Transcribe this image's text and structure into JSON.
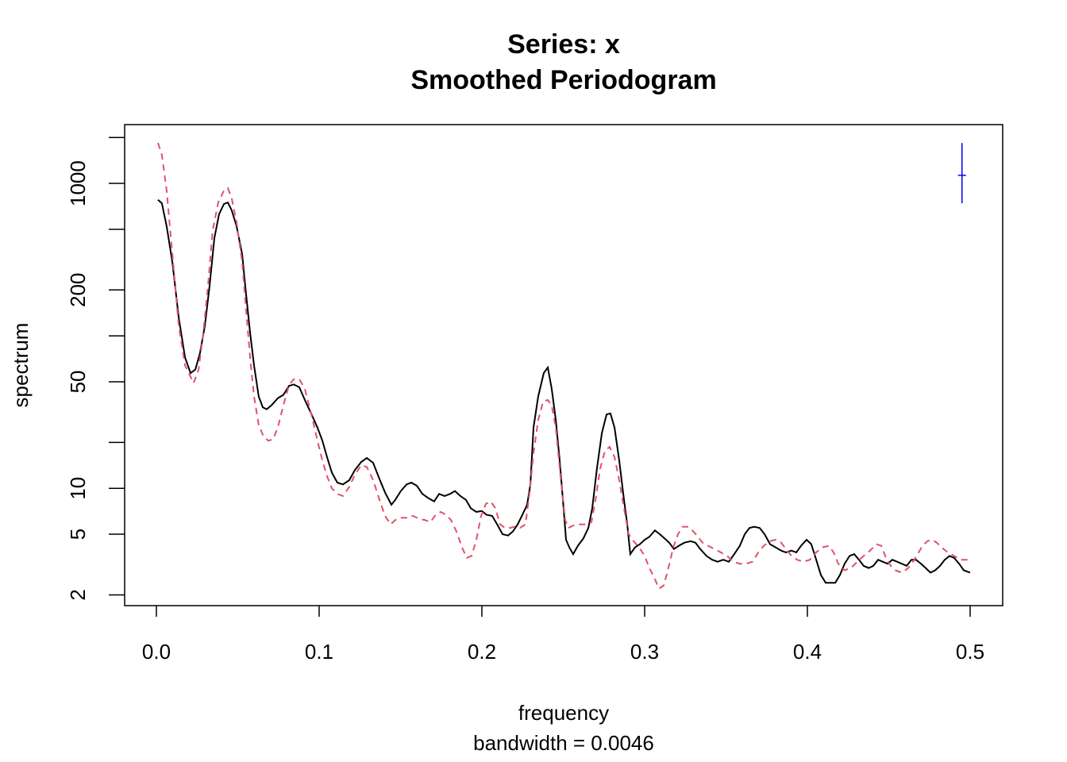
{
  "chart_data": {
    "type": "line",
    "title": "Series: x",
    "subtitle": "Smoothed Periodogram",
    "xlabel": "frequency",
    "sub": "bandwidth = 0.0046",
    "ylabel": "spectrum",
    "log_y": true,
    "xlim": [
      -0.0195,
      0.52
    ],
    "ylim": [
      1.7,
      2430
    ],
    "xticks": [
      {
        "value": 0,
        "label": "0.0"
      },
      0.1,
      0.2,
      0.3,
      0.4,
      0.5
    ],
    "yticks": [
      2,
      5,
      10,
      50,
      200,
      1000
    ],
    "yminor_ticks": [
      20,
      100,
      500,
      2000
    ],
    "series": [
      {
        "color": "#000000",
        "dash": false,
        "x": [
          0.001,
          0.0034,
          0.0063,
          0.0098,
          0.0137,
          0.0176,
          0.021,
          0.0239,
          0.0268,
          0.0298,
          0.0327,
          0.0356,
          0.0385,
          0.0415,
          0.0439,
          0.0463,
          0.0493,
          0.0527,
          0.0551,
          0.0576,
          0.06,
          0.0629,
          0.0654,
          0.0678,
          0.0707,
          0.0746,
          0.078,
          0.0815,
          0.0844,
          0.0878,
          0.0917,
          0.0951,
          0.099,
          0.102,
          0.1049,
          0.1078,
          0.1112,
          0.1146,
          0.1185,
          0.122,
          0.1259,
          0.1293,
          0.1332,
          0.1371,
          0.1405,
          0.1444,
          0.1468,
          0.1502,
          0.1537,
          0.1566,
          0.16,
          0.1634,
          0.1673,
          0.1707,
          0.1737,
          0.1771,
          0.1805,
          0.1834,
          0.1868,
          0.1902,
          0.1932,
          0.1966,
          0.2,
          0.2029,
          0.2063,
          0.2098,
          0.2127,
          0.2161,
          0.219,
          0.222,
          0.2249,
          0.2278,
          0.2298,
          0.2317,
          0.2346,
          0.238,
          0.2405,
          0.2429,
          0.2454,
          0.2478,
          0.2502,
          0.2517,
          0.2537,
          0.2561,
          0.259,
          0.2624,
          0.2654,
          0.2678,
          0.2707,
          0.2737,
          0.2766,
          0.279,
          0.2815,
          0.2844,
          0.2873,
          0.2893,
          0.2912,
          0.2941,
          0.2971,
          0.3,
          0.3029,
          0.3063,
          0.3093,
          0.3122,
          0.3151,
          0.318,
          0.321,
          0.3244,
          0.3283,
          0.3312,
          0.3341,
          0.338,
          0.3415,
          0.3449,
          0.3483,
          0.3517,
          0.3551,
          0.3585,
          0.3615,
          0.3644,
          0.3673,
          0.3707,
          0.3737,
          0.3771,
          0.3805,
          0.3839,
          0.3868,
          0.3902,
          0.3932,
          0.3961,
          0.3995,
          0.4024,
          0.4054,
          0.4083,
          0.4112,
          0.4141,
          0.4171,
          0.42,
          0.4229,
          0.4259,
          0.4288,
          0.4317,
          0.4346,
          0.4376,
          0.4405,
          0.4434,
          0.4463,
          0.4493,
          0.4522,
          0.4551,
          0.458,
          0.461,
          0.4639,
          0.4668,
          0.4698,
          0.4727,
          0.4756,
          0.4785,
          0.4815,
          0.4844,
          0.4873,
          0.4902,
          0.4932,
          0.4961,
          0.5
        ],
        "values": [
          780,
          741,
          524,
          305,
          132,
          72,
          57,
          60,
          77,
          117,
          213,
          437,
          627,
          733,
          750,
          665,
          524,
          344,
          189,
          104,
          64,
          40,
          34,
          33,
          35,
          39,
          41,
          47,
          48,
          46,
          37,
          31,
          25,
          20.5,
          16,
          12.7,
          10.9,
          10.6,
          11.3,
          13.2,
          14.9,
          15.8,
          14.7,
          11.5,
          9.4,
          7.8,
          8.4,
          9.6,
          10.6,
          10.9,
          10.4,
          9.2,
          8.6,
          8.2,
          9.2,
          8.9,
          9.2,
          9.6,
          8.9,
          8.4,
          7.4,
          7.0,
          7.1,
          6.7,
          6.6,
          5.7,
          5.0,
          4.9,
          5.2,
          5.8,
          6.7,
          7.8,
          10.6,
          25,
          40,
          57,
          62,
          45,
          28,
          15.2,
          7.4,
          4.6,
          4.1,
          3.7,
          4.2,
          4.7,
          5.5,
          7.4,
          13.5,
          23,
          30.5,
          31,
          25,
          15.2,
          8.4,
          5.8,
          3.7,
          4.1,
          4.3,
          4.6,
          4.8,
          5.3,
          5.0,
          4.7,
          4.4,
          4.0,
          4.2,
          4.4,
          4.5,
          4.4,
          4.0,
          3.6,
          3.4,
          3.3,
          3.4,
          3.3,
          3.7,
          4.2,
          5.0,
          5.5,
          5.6,
          5.5,
          5.0,
          4.3,
          4.1,
          3.9,
          3.8,
          3.9,
          3.8,
          4.2,
          4.6,
          4.3,
          3.4,
          2.7,
          2.4,
          2.4,
          2.4,
          2.7,
          3.2,
          3.6,
          3.7,
          3.4,
          3.1,
          3.0,
          3.1,
          3.4,
          3.3,
          3.2,
          3.4,
          3.3,
          3.2,
          3.1,
          3.4,
          3.4,
          3.2,
          3.0,
          2.8,
          2.9,
          3.1,
          3.4,
          3.6,
          3.5,
          3.2,
          2.9,
          2.8
        ]
      },
      {
        "color": "#DF536B",
        "dash": true,
        "x": [
          0.001,
          0.0034,
          0.0063,
          0.0098,
          0.0137,
          0.0176,
          0.021,
          0.0229,
          0.0259,
          0.0288,
          0.0317,
          0.0346,
          0.038,
          0.0415,
          0.0439,
          0.0463,
          0.0493,
          0.0527,
          0.0551,
          0.0576,
          0.06,
          0.0629,
          0.0659,
          0.0688,
          0.0717,
          0.0746,
          0.078,
          0.0815,
          0.0844,
          0.0878,
          0.0912,
          0.0951,
          0.099,
          0.102,
          0.1049,
          0.1078,
          0.1112,
          0.1146,
          0.1185,
          0.122,
          0.1259,
          0.1293,
          0.1332,
          0.1371,
          0.1405,
          0.1439,
          0.1468,
          0.1502,
          0.1537,
          0.1576,
          0.1615,
          0.1649,
          0.1683,
          0.1712,
          0.1746,
          0.178,
          0.181,
          0.1844,
          0.1878,
          0.1907,
          0.1937,
          0.1966,
          0.1995,
          0.2024,
          0.2054,
          0.2083,
          0.2112,
          0.2141,
          0.2171,
          0.22,
          0.2234,
          0.2268,
          0.2293,
          0.2317,
          0.2346,
          0.2376,
          0.2405,
          0.2429,
          0.2454,
          0.2483,
          0.2512,
          0.2532,
          0.2561,
          0.26,
          0.2639,
          0.2673,
          0.2698,
          0.2727,
          0.2756,
          0.2785,
          0.2815,
          0.2844,
          0.2873,
          0.2902,
          0.2932,
          0.2966,
          0.3,
          0.3029,
          0.3059,
          0.3088,
          0.3117,
          0.3146,
          0.3176,
          0.3205,
          0.3234,
          0.3263,
          0.3293,
          0.3322,
          0.3356,
          0.339,
          0.3429,
          0.3468,
          0.3507,
          0.3546,
          0.3585,
          0.3624,
          0.3663,
          0.3698,
          0.3732,
          0.3771,
          0.3805,
          0.3839,
          0.3868,
          0.3902,
          0.3937,
          0.3976,
          0.4015,
          0.4054,
          0.4093,
          0.4132,
          0.4161,
          0.419,
          0.4229,
          0.4268,
          0.4307,
          0.4346,
          0.4385,
          0.4424,
          0.4454,
          0.4483,
          0.4512,
          0.4541,
          0.458,
          0.462,
          0.4649,
          0.4678,
          0.4707,
          0.4737,
          0.4766,
          0.4795,
          0.4824,
          0.4863,
          0.4902,
          0.4941,
          0.4971,
          0.5
        ],
        "values": [
          1845,
          1540,
          898,
          344,
          117,
          64,
          54,
          49,
          60,
          104,
          213,
          493,
          750,
          898,
          931,
          796,
          556,
          305,
          149,
          72,
          40,
          26,
          21.8,
          20.5,
          21,
          25,
          35,
          47.5,
          52,
          52,
          45,
          31,
          20.5,
          15.2,
          12,
          10,
          9.2,
          8.9,
          10.2,
          12.3,
          14.2,
          13.8,
          11.3,
          8.4,
          6.6,
          5.8,
          6.2,
          6.4,
          6.4,
          6.6,
          6.3,
          6.2,
          6.0,
          6.6,
          7.0,
          6.7,
          6.2,
          5.2,
          4.1,
          3.5,
          3.6,
          4.6,
          6.6,
          7.9,
          8.2,
          7.4,
          5.8,
          5.5,
          5.5,
          5.6,
          5.5,
          5.8,
          9.4,
          17,
          28,
          37,
          38,
          35,
          25,
          12,
          6.2,
          5.5,
          5.7,
          5.8,
          5.8,
          6.0,
          8.4,
          13.5,
          17.6,
          18.7,
          16,
          11.3,
          7.4,
          5.0,
          4.5,
          4.1,
          3.6,
          3.0,
          2.6,
          2.2,
          2.3,
          3.0,
          4.1,
          5.0,
          5.6,
          5.6,
          5.3,
          4.9,
          4.4,
          4.2,
          4.0,
          3.8,
          3.6,
          3.3,
          3.2,
          3.2,
          3.3,
          3.8,
          4.2,
          4.5,
          4.6,
          4.4,
          4.0,
          3.6,
          3.4,
          3.3,
          3.4,
          3.8,
          4.1,
          4.2,
          3.8,
          3.2,
          2.9,
          3.0,
          3.3,
          3.6,
          3.9,
          4.3,
          4.2,
          3.5,
          3.1,
          2.9,
          2.8,
          3.0,
          3.3,
          3.7,
          4.2,
          4.5,
          4.6,
          4.4,
          4.1,
          3.8,
          3.6,
          3.4,
          3.4,
          3.4
        ]
      }
    ],
    "ci_bar": {
      "x": 0.495,
      "center": 1130,
      "lower": 741,
      "upper": 1840,
      "color": "#0000FF"
    }
  }
}
